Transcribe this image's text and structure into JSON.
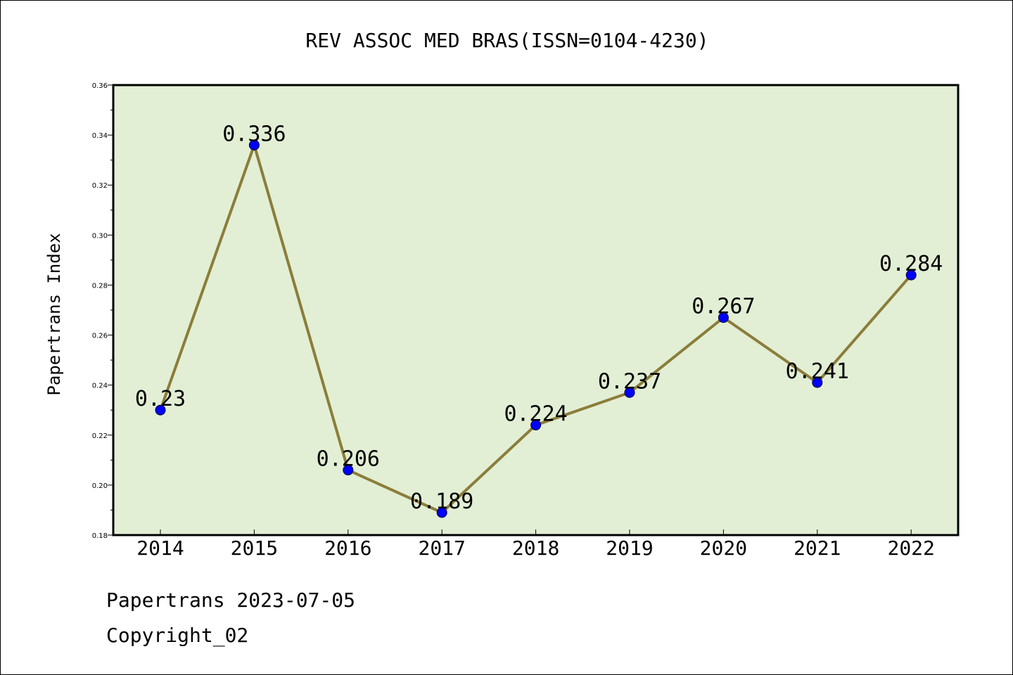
{
  "chart_data": {
    "type": "line",
    "title": "REV ASSOC MED BRAS(ISSN=0104-4230)",
    "xlabel": "",
    "ylabel": "Papertrans Index",
    "categories": [
      "2014",
      "2015",
      "2016",
      "2017",
      "2018",
      "2019",
      "2020",
      "2021",
      "2022"
    ],
    "values": [
      0.23,
      0.336,
      0.206,
      0.189,
      0.224,
      0.237,
      0.267,
      0.241,
      0.284
    ],
    "data_labels": [
      "0.23",
      "0.336",
      "0.206",
      "0.189",
      "0.224",
      "0.237",
      "0.267",
      "0.241",
      "0.284"
    ],
    "ylim": [
      0.18,
      0.36
    ],
    "yticks": [
      "0.18",
      "0.20",
      "0.22",
      "0.24",
      "0.26",
      "0.28",
      "0.30",
      "0.32",
      "0.34",
      "0.36"
    ],
    "grid": false,
    "colors": {
      "plot_background": "#e2efd5",
      "line": "#8b7d3a",
      "marker": "#0000ff"
    }
  },
  "footer": {
    "date_line": "Papertrans 2023-07-05",
    "copyright": "Copyright_02"
  }
}
